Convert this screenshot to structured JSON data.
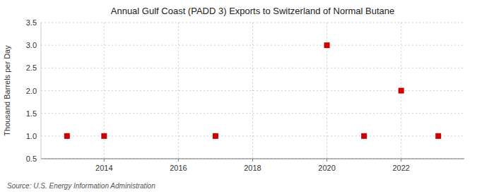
{
  "chart_data": {
    "type": "scatter",
    "title": "Annual Gulf Coast (PADD 3) Exports to Switzerland of Normal Butane",
    "y_label": "Thousand Barrels per Day",
    "source": "Source: U.S. Energy Information Administration",
    "x": [
      2013,
      2014,
      2017,
      2020,
      2021,
      2022,
      2023
    ],
    "values": [
      1.0,
      1.0,
      1.0,
      3.0,
      1.0,
      2.0,
      1.0
    ],
    "color": "#cc0000",
    "marker": "square",
    "xlim": [
      2012.3,
      2023.7
    ],
    "ylim": [
      0.5,
      3.5
    ],
    "xticks": [
      2014,
      2016,
      2018,
      2020,
      2022
    ],
    "yticks": [
      0.5,
      {
        "value": 1.0,
        "label": "1.0"
      },
      1.5,
      {
        "value": 2.0,
        "label": "2.0"
      },
      2.5,
      {
        "value": 3.0,
        "label": "3.0"
      },
      3.5
    ],
    "grid": true
  }
}
